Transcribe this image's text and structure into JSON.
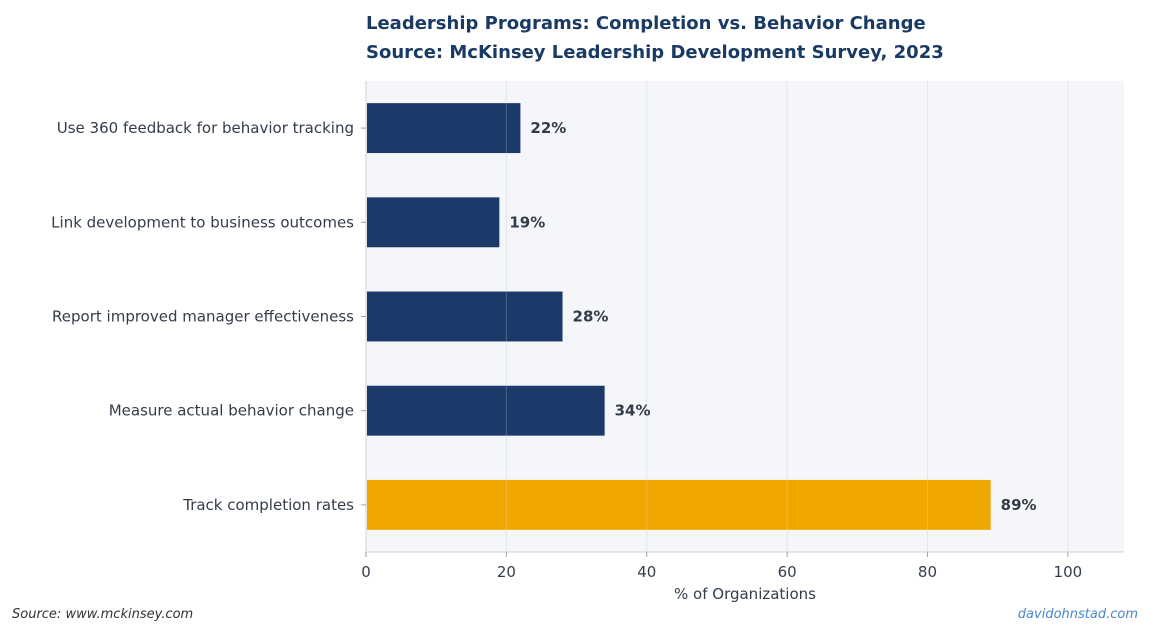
{
  "title": "Leadership Programs: Completion vs. Behavior Change",
  "subtitle": "Source: McKinsey Leadership Development Survey, 2023",
  "footer": {
    "source": "Source: www.mckinsey.com",
    "credit": "davidohnstad.com"
  },
  "colors": {
    "primary": "#1b3a69",
    "highlight": "#f0a800",
    "plot_background": "#f4f6f9",
    "text": "#333d4a"
  },
  "chart_data": {
    "type": "bar",
    "orientation": "horizontal",
    "title": "Leadership Programs: Completion vs. Behavior Change",
    "subtitle": "Source: McKinsey Leadership Development Survey, 2023",
    "xlabel": "% of Organizations",
    "ylabel": "",
    "xlim": [
      0,
      108
    ],
    "xticks": [
      0,
      20,
      40,
      60,
      80,
      100
    ],
    "grid": true,
    "categories": [
      "Use 360 feedback for behavior tracking",
      "Link development to business outcomes",
      "Report improved manager effectiveness",
      "Measure actual behavior change",
      "Track completion rates"
    ],
    "values": [
      22,
      19,
      28,
      34,
      89
    ],
    "value_labels": [
      "22%",
      "19%",
      "28%",
      "34%",
      "89%"
    ],
    "highlight_category": "Track completion rates"
  }
}
